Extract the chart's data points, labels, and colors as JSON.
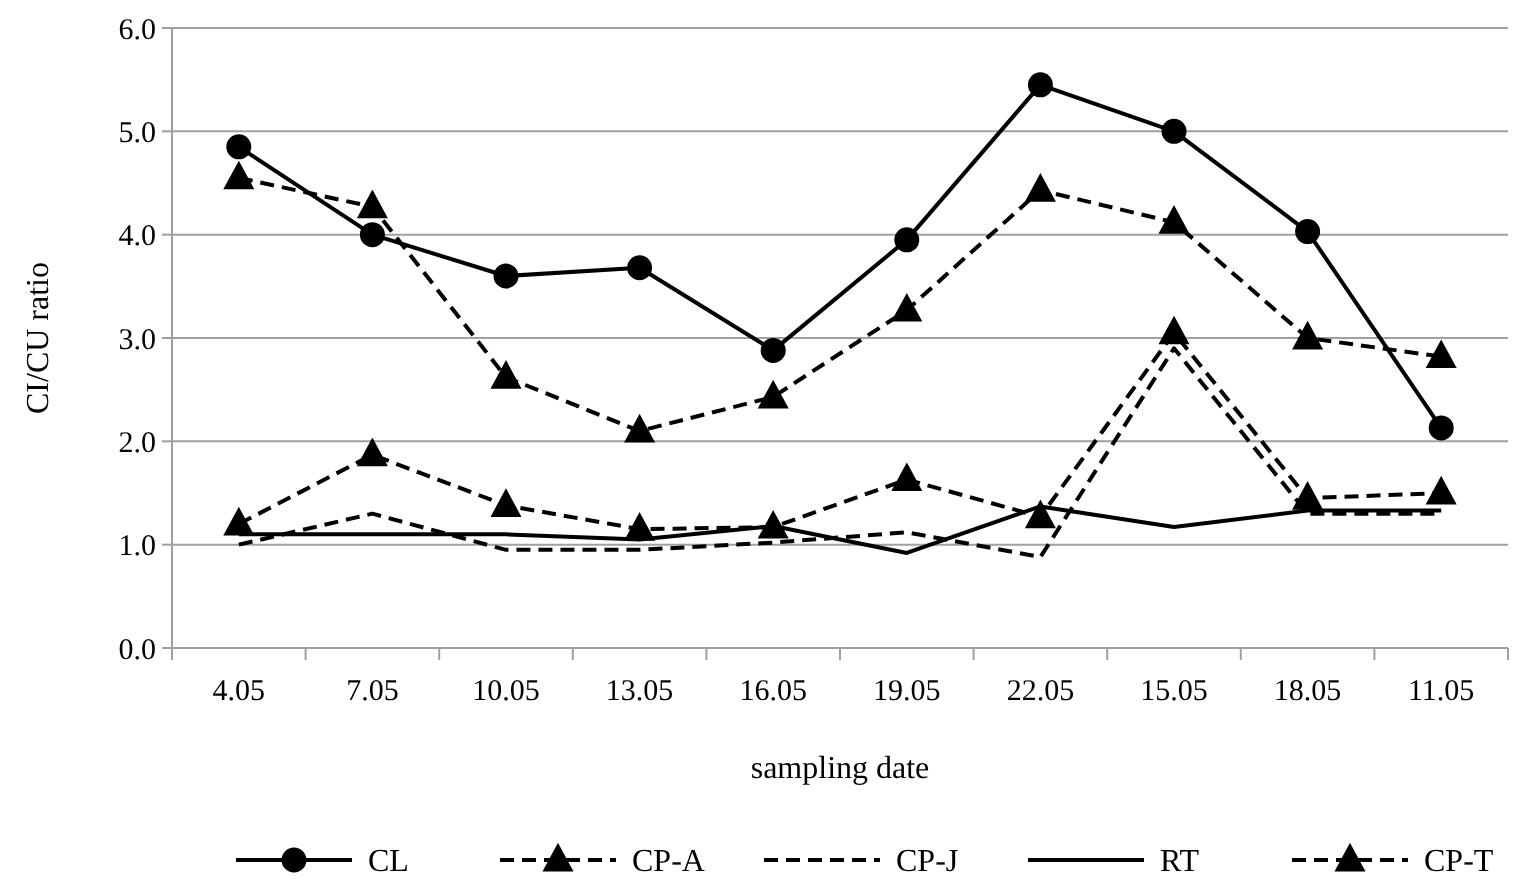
{
  "chart_data": {
    "type": "line",
    "xlabel": "sampling date",
    "ylabel": "CI/CU ratio",
    "categories": [
      "4.05",
      "7.05",
      "10.05",
      "13.05",
      "16.05",
      "19.05",
      "22.05",
      "15.05",
      "18.05",
      "11.05"
    ],
    "ylim": [
      0,
      6
    ],
    "yticks": [
      {
        "value": 0,
        "label": "0.0"
      },
      {
        "value": 1,
        "label": "1.0"
      },
      {
        "value": 2,
        "label": "2.0"
      },
      {
        "value": 3,
        "label": "3.0"
      },
      {
        "value": 4,
        "label": "4.0"
      },
      {
        "value": 5,
        "label": "5.0"
      },
      {
        "value": 6,
        "label": "6.0"
      }
    ],
    "grid": "y",
    "legend": "bottom",
    "series": [
      {
        "name": "CL",
        "color": "#000000",
        "marker": "circle",
        "line_style": "solid",
        "values": [
          4.85,
          4.0,
          3.6,
          3.68,
          2.88,
          3.95,
          5.45,
          5.0,
          4.03,
          2.13
        ]
      },
      {
        "name": "CP-A",
        "color": "#000000",
        "marker": "triangle",
        "line_style": "dashed",
        "values": [
          4.55,
          4.27,
          2.62,
          2.1,
          2.43,
          3.27,
          4.43,
          4.12,
          3.0,
          2.82
        ]
      },
      {
        "name": "CP-J",
        "color": "#000000",
        "marker": "none",
        "line_style": "dashed",
        "values": [
          1.0,
          1.3,
          0.95,
          0.95,
          1.02,
          1.12,
          0.88,
          2.9,
          1.3,
          1.3
        ]
      },
      {
        "name": "RT",
        "color": "#000000",
        "marker": "none",
        "line_style": "solid",
        "values": [
          1.1,
          1.1,
          1.1,
          1.05,
          1.18,
          0.92,
          1.37,
          1.17,
          1.33,
          1.33
        ]
      },
      {
        "name": "CP-T",
        "color": "#000000",
        "marker": "triangle",
        "line_style": "dashed",
        "values": [
          1.2,
          1.87,
          1.38,
          1.15,
          1.17,
          1.63,
          1.27,
          3.05,
          1.45,
          1.5
        ]
      }
    ]
  }
}
